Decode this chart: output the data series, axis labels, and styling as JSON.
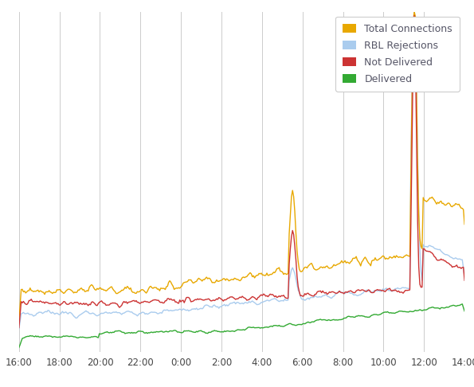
{
  "background_color": "#ffffff",
  "grid_color": "#cccccc",
  "legend_labels": [
    "Total Connections",
    "RBL Rejections",
    "Not Delivered",
    "Delivered"
  ],
  "legend_colors": [
    "#e8a800",
    "#aaccee",
    "#cc3333",
    "#33aa33"
  ],
  "legend_text_color": "#555566",
  "x_tick_labels": [
    "16:00",
    "18:00",
    "20:00",
    "22:00",
    "0:00",
    "2:00",
    "4:00",
    "6:00",
    "8:00",
    "10:00",
    "12:00",
    "14:00"
  ],
  "n_points": 400,
  "line_width": 1.0,
  "ylim_max": 2200,
  "tick_fontsize": 8.5
}
